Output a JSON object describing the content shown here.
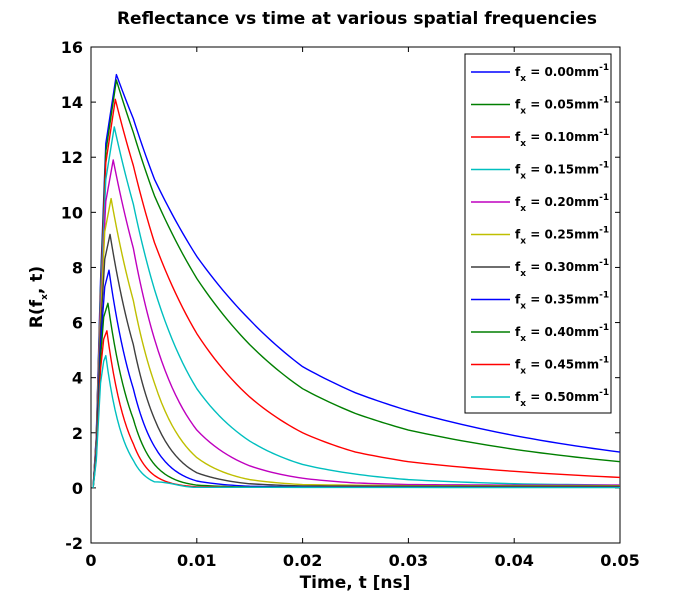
{
  "chart_data": {
    "type": "line",
    "title": "Reflectance vs time at various spatial frequencies",
    "xlabel": "Time, t [ns]",
    "ylabel": {
      "main": "R(f",
      "sub": "x",
      "tail": ", t)"
    },
    "xlim": [
      0,
      0.05
    ],
    "ylim": [
      -2,
      16
    ],
    "xticks": [
      0,
      0.01,
      0.02,
      0.03,
      0.04,
      0.05
    ],
    "xtick_labels": [
      "0",
      "0.01",
      "0.02",
      "0.03",
      "0.04",
      "0.05"
    ],
    "yticks": [
      -2,
      0,
      2,
      4,
      6,
      8,
      10,
      12,
      14,
      16
    ],
    "ytick_labels": [
      "-2",
      "0",
      "2",
      "4",
      "6",
      "8",
      "10",
      "12",
      "14",
      "16"
    ],
    "grid": false,
    "legend_position": "top-right",
    "series": [
      {
        "legend": {
          "f": "f",
          "sub": "x",
          "eq": " = 0.00mm",
          "sup": "-1"
        },
        "color": "#0000ff",
        "peak_t": 0.0024,
        "peak_r": 15.0,
        "values": [
          [
            0.0002,
            0.0
          ],
          [
            0.0005,
            1.9
          ],
          [
            0.0009,
            7.5
          ],
          [
            0.0014,
            12.5
          ],
          [
            0.0024,
            15.0
          ],
          [
            0.004,
            13.4
          ],
          [
            0.006,
            11.2
          ],
          [
            0.01,
            8.4
          ],
          [
            0.015,
            6.1
          ],
          [
            0.02,
            4.4
          ],
          [
            0.025,
            3.45
          ],
          [
            0.03,
            2.8
          ],
          [
            0.04,
            1.9
          ],
          [
            0.05,
            1.3
          ]
        ]
      },
      {
        "legend": {
          "f": "f",
          "sub": "x",
          "eq": " = 0.05mm",
          "sup": "-1"
        },
        "color": "#007f00",
        "peak_t": 0.0024,
        "peak_r": 14.8,
        "values": [
          [
            0.0002,
            0.0
          ],
          [
            0.0005,
            1.8
          ],
          [
            0.0009,
            7.2
          ],
          [
            0.0014,
            12.2
          ],
          [
            0.0024,
            14.8
          ],
          [
            0.004,
            12.9
          ],
          [
            0.006,
            10.6
          ],
          [
            0.01,
            7.6
          ],
          [
            0.015,
            5.2
          ],
          [
            0.02,
            3.6
          ],
          [
            0.025,
            2.7
          ],
          [
            0.03,
            2.1
          ],
          [
            0.04,
            1.4
          ],
          [
            0.05,
            0.95
          ]
        ]
      },
      {
        "legend": {
          "f": "f",
          "sub": "x",
          "eq": " = 0.10mm",
          "sup": "-1"
        },
        "color": "#ff0000",
        "peak_t": 0.0023,
        "peak_r": 14.1,
        "values": [
          [
            0.0002,
            0.0
          ],
          [
            0.0005,
            1.8
          ],
          [
            0.0009,
            7.0
          ],
          [
            0.0014,
            11.8
          ],
          [
            0.0023,
            14.1
          ],
          [
            0.004,
            11.7
          ],
          [
            0.006,
            8.9
          ],
          [
            0.01,
            5.6
          ],
          [
            0.015,
            3.3
          ],
          [
            0.02,
            2.0
          ],
          [
            0.025,
            1.3
          ],
          [
            0.03,
            0.95
          ],
          [
            0.04,
            0.6
          ],
          [
            0.05,
            0.38
          ]
        ]
      },
      {
        "legend": {
          "f": "f",
          "sub": "x",
          "eq": " = 0.15mm",
          "sup": "-1"
        },
        "color": "#00bfbf",
        "peak_t": 0.0022,
        "peak_r": 13.1,
        "values": [
          [
            0.0002,
            0.0
          ],
          [
            0.0005,
            1.7
          ],
          [
            0.0009,
            6.8
          ],
          [
            0.0014,
            11.2
          ],
          [
            0.0022,
            13.1
          ],
          [
            0.004,
            10.3
          ],
          [
            0.006,
            7.2
          ],
          [
            0.01,
            3.6
          ],
          [
            0.015,
            1.7
          ],
          [
            0.02,
            0.85
          ],
          [
            0.025,
            0.5
          ],
          [
            0.03,
            0.3
          ],
          [
            0.04,
            0.15
          ],
          [
            0.05,
            0.1
          ]
        ]
      },
      {
        "legend": {
          "f": "f",
          "sub": "x",
          "eq": " = 0.20mm",
          "sup": "-1"
        },
        "color": "#bf00bf",
        "peak_t": 0.0021,
        "peak_r": 11.9,
        "values": [
          [
            0.0002,
            0.0
          ],
          [
            0.0005,
            1.6
          ],
          [
            0.0009,
            6.5
          ],
          [
            0.0014,
            10.4
          ],
          [
            0.0021,
            11.9
          ],
          [
            0.004,
            8.7
          ],
          [
            0.006,
            5.4
          ],
          [
            0.01,
            2.1
          ],
          [
            0.015,
            0.8
          ],
          [
            0.02,
            0.35
          ],
          [
            0.025,
            0.18
          ],
          [
            0.03,
            0.12
          ],
          [
            0.04,
            0.1
          ],
          [
            0.05,
            0.1
          ]
        ]
      },
      {
        "legend": {
          "f": "f",
          "sub": "x",
          "eq": " = 0.25mm",
          "sup": "-1"
        },
        "color": "#bfbf00",
        "peak_t": 0.0019,
        "peak_r": 10.5,
        "values": [
          [
            0.0002,
            0.0
          ],
          [
            0.0005,
            1.5
          ],
          [
            0.0009,
            6.1
          ],
          [
            0.0013,
            9.3
          ],
          [
            0.0019,
            10.5
          ],
          [
            0.004,
            6.8
          ],
          [
            0.006,
            3.8
          ],
          [
            0.01,
            1.1
          ],
          [
            0.015,
            0.3
          ],
          [
            0.02,
            0.12
          ],
          [
            0.03,
            0.08
          ],
          [
            0.04,
            0.08
          ],
          [
            0.05,
            0.08
          ]
        ]
      },
      {
        "legend": {
          "f": "f",
          "sub": "x",
          "eq": " = 0.30mm",
          "sup": "-1"
        },
        "color": "#3f3f3f",
        "peak_t": 0.0018,
        "peak_r": 9.2,
        "values": [
          [
            0.0002,
            0.0
          ],
          [
            0.0005,
            1.4
          ],
          [
            0.0009,
            5.7
          ],
          [
            0.0013,
            8.3
          ],
          [
            0.0018,
            9.2
          ],
          [
            0.004,
            5.2
          ],
          [
            0.006,
            2.5
          ],
          [
            0.01,
            0.55
          ],
          [
            0.015,
            0.15
          ],
          [
            0.02,
            0.07
          ],
          [
            0.03,
            0.06
          ],
          [
            0.05,
            0.06
          ]
        ]
      },
      {
        "legend": {
          "f": "f",
          "sub": "x",
          "eq": " = 0.35mm",
          "sup": "-1"
        },
        "color": "#0000ff",
        "peak_t": 0.0017,
        "peak_r": 7.9,
        "values": [
          [
            0.0002,
            0.0
          ],
          [
            0.0005,
            1.3
          ],
          [
            0.0009,
            5.2
          ],
          [
            0.0013,
            7.3
          ],
          [
            0.0017,
            7.9
          ],
          [
            0.004,
            3.6
          ],
          [
            0.006,
            1.5
          ],
          [
            0.01,
            0.25
          ],
          [
            0.015,
            0.06
          ],
          [
            0.02,
            0.04
          ],
          [
            0.05,
            0.04
          ]
        ]
      },
      {
        "legend": {
          "f": "f",
          "sub": "x",
          "eq": " = 0.40mm",
          "sup": "-1"
        },
        "color": "#007f00",
        "peak_t": 0.0016,
        "peak_r": 6.7,
        "values": [
          [
            0.0002,
            0.0
          ],
          [
            0.0005,
            1.2
          ],
          [
            0.0009,
            4.7
          ],
          [
            0.0012,
            6.2
          ],
          [
            0.0016,
            6.7
          ],
          [
            0.004,
            2.5
          ],
          [
            0.006,
            0.85
          ],
          [
            0.01,
            0.1
          ],
          [
            0.015,
            0.03
          ],
          [
            0.05,
            0.03
          ]
        ]
      },
      {
        "legend": {
          "f": "f",
          "sub": "x",
          "eq": " = 0.45mm",
          "sup": "-1"
        },
        "color": "#ff0000",
        "peak_t": 0.0015,
        "peak_r": 5.7,
        "values": [
          [
            0.0002,
            0.0
          ],
          [
            0.0005,
            1.1
          ],
          [
            0.0009,
            4.3
          ],
          [
            0.0012,
            5.4
          ],
          [
            0.0015,
            5.7
          ],
          [
            0.004,
            1.6
          ],
          [
            0.006,
            0.45
          ],
          [
            0.01,
            0.04
          ],
          [
            0.015,
            0.02
          ],
          [
            0.05,
            0.02
          ]
        ]
      },
      {
        "legend": {
          "f": "f",
          "sub": "x",
          "eq": " = 0.50mm",
          "sup": "-1"
        },
        "color": "#00bfbf",
        "peak_t": 0.0014,
        "peak_r": 4.8,
        "values": [
          [
            0.0002,
            0.0
          ],
          [
            0.0005,
            1.0
          ],
          [
            0.0009,
            3.8
          ],
          [
            0.0012,
            4.6
          ],
          [
            0.0014,
            4.8
          ],
          [
            0.004,
            1.0
          ],
          [
            0.006,
            0.22
          ],
          [
            0.01,
            0.02
          ],
          [
            0.05,
            0.01
          ]
        ]
      }
    ]
  }
}
